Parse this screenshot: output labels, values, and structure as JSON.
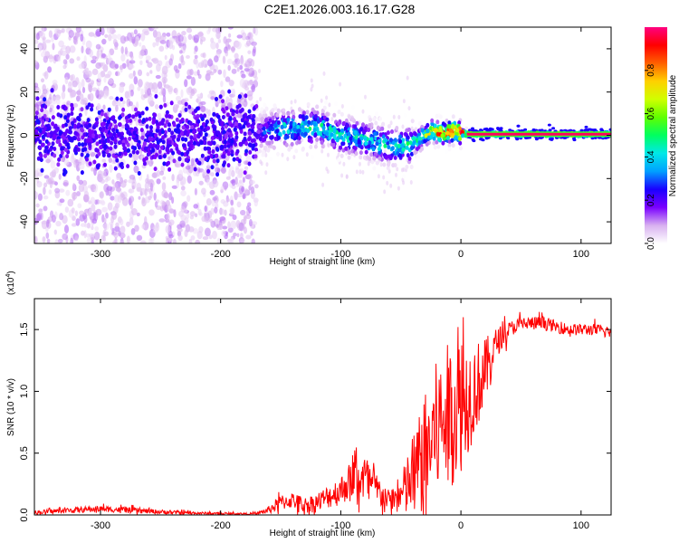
{
  "title": "C2E1.2026.003.16.17.G28",
  "chart_data": [
    {
      "type": "heatmap",
      "title": "C2E1.2026.003.16.17.G28",
      "xlabel": "Height of straight line (km)",
      "ylabel": "Frequency (Hz)",
      "xlim": [
        -355,
        125
      ],
      "ylim": [
        -50,
        50
      ],
      "xticks": [
        -300,
        -200,
        -100,
        0,
        100
      ],
      "yticks": [
        -40,
        -20,
        0,
        20,
        40
      ],
      "colorbar": {
        "label": "Normalized spectral amplitude",
        "range": [
          0,
          1
        ],
        "ticks": [
          "0.0",
          "0.2",
          "0.4",
          "0.6",
          "0.8"
        ],
        "colors": [
          "#ffffff",
          "#d8b0f0",
          "#7a00ff",
          "#1a00ff",
          "#00a0ff",
          "#00e8e8",
          "#00ff60",
          "#60ff00",
          "#d0ff00",
          "#ffd000",
          "#ff6000",
          "#ff0000",
          "#ff0080"
        ]
      },
      "ridge": {
        "x": [
          -355,
          -300,
          -250,
          -200,
          -170,
          -150,
          -120,
          -100,
          -80,
          -60,
          -45,
          -35,
          -25,
          -15,
          -5,
          0,
          10,
          50,
          125
        ],
        "freq": [
          0,
          0,
          0,
          0,
          1,
          3,
          4,
          0,
          -2,
          -5,
          -5,
          -2,
          2,
          1,
          2,
          1,
          0.5,
          0.5,
          0.5
        ],
        "amplitude": [
          0.08,
          0.12,
          0.12,
          0.12,
          0.2,
          0.42,
          0.45,
          0.42,
          0.4,
          0.42,
          0.45,
          0.55,
          0.7,
          0.85,
          0.9,
          0.95,
          1.0,
          1.0,
          1.0
        ]
      }
    },
    {
      "type": "line",
      "xlabel": "Height of straight line (km)",
      "ylabel": "SNR (10 * v/v)",
      "scale_label": "(x10",
      "scale_exp": "4",
      "xlim": [
        -355,
        125
      ],
      "ylim": [
        0,
        1.75
      ],
      "xticks": [
        -300,
        -200,
        -100,
        0,
        100
      ],
      "yticks": [
        "0.0",
        "0.5",
        "1.0",
        "1.5"
      ],
      "series": [
        {
          "name": "SNR",
          "color": "#ff0000",
          "envelope": {
            "x": [
              -355,
              -320,
              -300,
              -280,
              -240,
              -200,
              -170,
              -160,
              -150,
              -140,
              -130,
              -120,
              -110,
              -100,
              -90,
              -80,
              -70,
              -60,
              -50,
              -40,
              -30,
              -20,
              -10,
              0,
              10,
              20,
              30,
              40,
              50,
              60,
              70,
              80,
              90,
              100,
              110,
              125
            ],
            "mean": [
              0.02,
              0.04,
              0.05,
              0.04,
              0.02,
              0.01,
              0.01,
              0.04,
              0.1,
              0.12,
              0.08,
              0.1,
              0.15,
              0.2,
              0.3,
              0.3,
              0.2,
              0.12,
              0.15,
              0.3,
              0.5,
              0.7,
              0.8,
              0.9,
              1.0,
              1.15,
              1.4,
              1.5,
              1.55,
              1.55,
              1.55,
              1.52,
              1.5,
              1.5,
              1.5,
              1.48
            ],
            "spread": [
              0.02,
              0.03,
              0.03,
              0.03,
              0.02,
              0.01,
              0.01,
              0.04,
              0.08,
              0.08,
              0.08,
              0.1,
              0.12,
              0.15,
              0.2,
              0.25,
              0.18,
              0.1,
              0.2,
              0.45,
              0.6,
              0.7,
              0.75,
              0.7,
              0.5,
              0.35,
              0.15,
              0.08,
              0.07,
              0.07,
              0.07,
              0.06,
              0.06,
              0.06,
              0.06,
              0.06
            ]
          }
        }
      ]
    }
  ]
}
